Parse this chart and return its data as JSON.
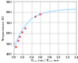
{
  "title": "",
  "xlabel": "R₃₆₆ nm / R₂₉₂ nm",
  "ylabel": "Temperature (K)",
  "xlim": [
    0.0,
    1.4
  ],
  "ylim": [
    400,
    900
  ],
  "xticks": [
    0.0,
    0.2,
    0.4,
    0.6,
    0.8,
    1.0,
    1.2,
    1.4
  ],
  "yticks": [
    400,
    500,
    600,
    700,
    800,
    900
  ],
  "curve_color": "#aaddff",
  "point_color": "#ee3333",
  "curve_x": [
    0.01,
    0.03,
    0.05,
    0.08,
    0.12,
    0.17,
    0.23,
    0.3,
    0.38,
    0.48,
    0.6,
    0.73,
    0.88,
    1.03,
    1.18,
    1.33,
    1.4
  ],
  "curve_y": [
    473,
    495,
    518,
    548,
    582,
    622,
    661,
    700,
    735,
    762,
    784,
    800,
    812,
    820,
    825,
    828,
    829
  ],
  "points_x": [
    0.04,
    0.09,
    0.13,
    0.18,
    0.24,
    0.48,
    0.58
  ],
  "points_y": [
    473,
    530,
    570,
    610,
    650,
    760,
    783
  ],
  "grid_color": "#bbbbbb",
  "bg_color": "#ffffff",
  "curve_lw": 0.9,
  "point_size": 3,
  "tick_fontsize": 3,
  "label_fontsize": 3
}
